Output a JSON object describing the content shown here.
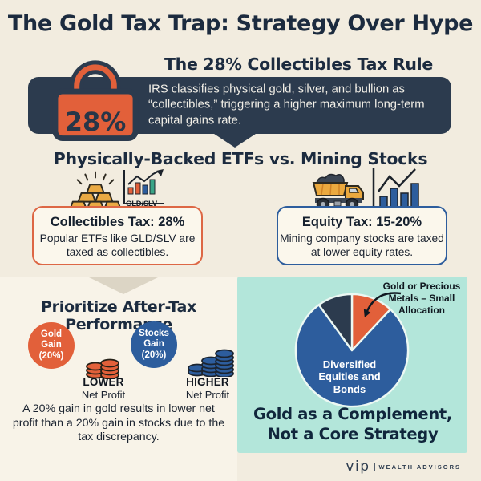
{
  "page": {
    "title": "The Gold Tax Trap: Strategy Over Hype"
  },
  "tax_rule": {
    "heading": "The 28% Collectibles Tax Rule",
    "lock_value": "28%",
    "body": "IRS classifies physical gold, silver, and bullion as “collectibles,” triggering a higher maximum long-term capital gains rate."
  },
  "comparison": {
    "heading": "Physically-Backed ETFs vs. Mining Stocks",
    "etf": {
      "chart_label": "GLD/SLV",
      "box_title": "Collectibles Tax: 28%",
      "box_body": "Popular ETFs like GLD/SLV are taxed as collectibles."
    },
    "mining": {
      "box_title": "Equity Tax: 15-20%",
      "box_body": "Mining company stocks are taxed at lower equity rates."
    }
  },
  "after_tax": {
    "heading": "Prioritize After-Tax Performance",
    "gold_bubble": "Gold\nGain\n(20%)",
    "stocks_bubble": "Stocks\nGain\n(20%)",
    "lower_word": "LOWER",
    "lower_sub": "Net Profit",
    "higher_word": "HIGHER",
    "higher_sub": "Net Profit",
    "body": "A 20% gain in gold results in lower net profit than a 20% gain in stocks due to the tax discrepancy."
  },
  "allocation": {
    "callout": "Gold or Precious Metals – Small Allocation",
    "pie_center_label": "Diversified Equities and Bonds",
    "caption": "Gold as a Complement,\nNot a Core Strategy"
  },
  "footer": {
    "logo": "vip",
    "brand": "WEALTH ADVISORS"
  },
  "chart_data": {
    "type": "pie",
    "title": "Gold as a Complement, Not a Core Strategy",
    "legend_position": "none",
    "start_angle_deg": 0,
    "direction": "clockwise",
    "slices": [
      {
        "label": "Gold or Precious Metals – Small Allocation",
        "value": 12,
        "color": "#e2603a"
      },
      {
        "label": "Diversified Equities and Bonds",
        "value": 78,
        "color": "#2d5d9d"
      },
      {
        "label": "",
        "value": 10,
        "color": "#2c3b4e"
      }
    ]
  },
  "colors": {
    "background": "#f2ecdf",
    "panel_left": "#f8f3e8",
    "panel_teal": "#b3e6da",
    "navy": "#2c3b4e",
    "orange": "#e2603a",
    "blue": "#2d5d9d",
    "gold": "#eaaa43",
    "text_dark": "#1c2b3f"
  }
}
